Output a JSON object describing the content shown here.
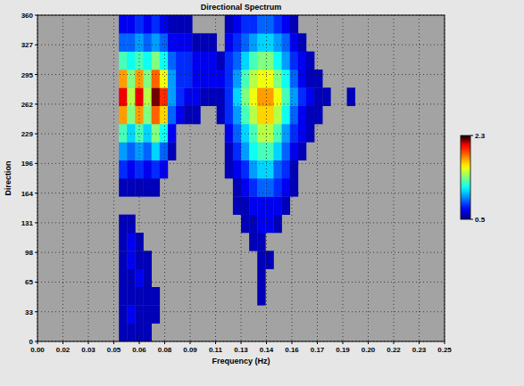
{
  "chart_data": {
    "type": "heatmap",
    "title": "Directional Spectrum",
    "x_label": "Frequency (Hz)",
    "y_label": "Direction",
    "x": [
      0.0525,
      0.0575,
      0.0625,
      0.0675,
      0.0725,
      0.0775,
      0.0825,
      0.0875,
      0.0925,
      0.0975,
      0.1025,
      0.1075,
      0.1125,
      0.1175,
      0.1225,
      0.1275,
      0.1325,
      0.1375,
      0.1425,
      0.1475,
      0.1525,
      0.1575,
      0.1625,
      0.1675,
      0.1725,
      0.1775,
      0.1825,
      0.1875,
      0.1925,
      0.1975
    ],
    "y": [
      10,
      30,
      50,
      70,
      90,
      110,
      130,
      150,
      170,
      190,
      210,
      230,
      250,
      270,
      290,
      310,
      330,
      350
    ],
    "values": [
      [
        0.6,
        0.6,
        0.6,
        0.6,
        null,
        null,
        null,
        null,
        null,
        null,
        null,
        null,
        null,
        null,
        null,
        null,
        null,
        null,
        null,
        null,
        null,
        null,
        null,
        null,
        null,
        null,
        null,
        null,
        null,
        null
      ],
      [
        0.6,
        0.7,
        0.6,
        0.6,
        0.6,
        null,
        null,
        null,
        null,
        null,
        null,
        null,
        null,
        null,
        null,
        null,
        null,
        null,
        null,
        null,
        null,
        null,
        null,
        null,
        null,
        null,
        null,
        null,
        null,
        null
      ],
      [
        0.6,
        0.6,
        0.6,
        0.6,
        0.6,
        null,
        null,
        null,
        null,
        null,
        null,
        null,
        null,
        null,
        null,
        null,
        null,
        0.6,
        null,
        null,
        null,
        null,
        null,
        null,
        null,
        null,
        null,
        null,
        null,
        null
      ],
      [
        0.6,
        0.6,
        0.7,
        0.6,
        null,
        null,
        null,
        null,
        null,
        null,
        null,
        null,
        null,
        null,
        null,
        null,
        null,
        0.6,
        null,
        null,
        null,
        null,
        null,
        null,
        null,
        null,
        null,
        null,
        null,
        null
      ],
      [
        0.6,
        0.7,
        0.6,
        0.6,
        null,
        null,
        null,
        null,
        null,
        null,
        null,
        null,
        null,
        null,
        null,
        null,
        null,
        0.6,
        0.6,
        null,
        null,
        null,
        null,
        null,
        null,
        null,
        null,
        null,
        null,
        null
      ],
      [
        0.6,
        0.7,
        0.6,
        null,
        null,
        null,
        null,
        null,
        null,
        null,
        null,
        null,
        null,
        null,
        null,
        null,
        0.6,
        0.6,
        null,
        null,
        null,
        null,
        null,
        null,
        null,
        null,
        null,
        null,
        null,
        null
      ],
      [
        0.6,
        0.6,
        null,
        null,
        null,
        null,
        null,
        null,
        null,
        null,
        null,
        null,
        null,
        null,
        null,
        0.6,
        0.6,
        0.7,
        0.7,
        0.6,
        null,
        null,
        null,
        null,
        null,
        null,
        null,
        null,
        null,
        null
      ],
      [
        null,
        null,
        null,
        null,
        null,
        null,
        null,
        null,
        null,
        null,
        null,
        null,
        null,
        null,
        0.6,
        0.6,
        0.7,
        0.7,
        0.7,
        0.7,
        0.6,
        null,
        null,
        null,
        null,
        null,
        null,
        null,
        null,
        null
      ],
      [
        0.6,
        0.6,
        0.6,
        0.6,
        0.6,
        null,
        null,
        null,
        null,
        null,
        null,
        null,
        null,
        null,
        0.6,
        0.7,
        0.8,
        0.9,
        0.9,
        0.8,
        0.7,
        0.6,
        null,
        null,
        null,
        null,
        null,
        null,
        null,
        null
      ],
      [
        0.8,
        0.7,
        0.8,
        0.7,
        0.8,
        0.7,
        null,
        null,
        null,
        null,
        null,
        null,
        null,
        0.6,
        0.7,
        0.8,
        1.0,
        1.1,
        1.1,
        0.9,
        0.8,
        0.6,
        null,
        null,
        null,
        null,
        null,
        null,
        null,
        null
      ],
      [
        1.0,
        0.9,
        1.0,
        0.9,
        1.1,
        0.9,
        0.6,
        null,
        null,
        null,
        null,
        null,
        null,
        0.6,
        0.8,
        1.0,
        1.2,
        1.3,
        1.3,
        1.1,
        0.9,
        0.7,
        0.6,
        null,
        null,
        null,
        null,
        null,
        null,
        null
      ],
      [
        1.3,
        1.1,
        1.3,
        1.1,
        1.4,
        1.2,
        0.7,
        null,
        null,
        null,
        null,
        null,
        null,
        0.7,
        0.9,
        1.1,
        1.3,
        1.5,
        1.5,
        1.3,
        1.0,
        0.8,
        0.7,
        0.6,
        null,
        null,
        null,
        null,
        null,
        null
      ],
      [
        1.8,
        1.4,
        1.8,
        1.4,
        1.9,
        1.7,
        0.9,
        0.7,
        0.6,
        0.6,
        null,
        null,
        0.6,
        0.8,
        1.0,
        1.3,
        1.5,
        1.7,
        1.7,
        1.5,
        1.2,
        0.9,
        0.7,
        0.6,
        0.6,
        null,
        null,
        null,
        null,
        null
      ],
      [
        2.1,
        1.5,
        2.1,
        1.5,
        2.2,
        2.0,
        1.0,
        0.8,
        0.7,
        0.7,
        0.6,
        0.6,
        0.6,
        0.8,
        1.1,
        1.4,
        1.6,
        1.8,
        1.8,
        1.6,
        1.3,
        1.0,
        0.8,
        0.7,
        0.6,
        0.6,
        null,
        null,
        0.6,
        null
      ],
      [
        1.8,
        1.4,
        1.8,
        1.4,
        1.9,
        1.6,
        1.0,
        0.8,
        0.8,
        0.7,
        0.7,
        0.7,
        0.7,
        0.8,
        1.0,
        1.3,
        1.5,
        1.6,
        1.6,
        1.4,
        1.2,
        0.9,
        0.7,
        0.6,
        0.6,
        null,
        null,
        null,
        null,
        null
      ],
      [
        1.3,
        1.2,
        1.3,
        1.2,
        1.4,
        1.2,
        0.9,
        0.8,
        0.8,
        0.7,
        0.7,
        0.7,
        0.6,
        0.8,
        0.9,
        1.1,
        1.3,
        1.4,
        1.4,
        1.2,
        1.0,
        0.8,
        0.7,
        0.6,
        null,
        null,
        null,
        null,
        null,
        null
      ],
      [
        0.9,
        0.9,
        1.0,
        0.9,
        1.0,
        0.9,
        0.7,
        0.7,
        0.7,
        0.6,
        0.6,
        0.6,
        null,
        0.7,
        0.8,
        0.9,
        1.0,
        1.1,
        1.1,
        1.0,
        0.9,
        0.7,
        0.6,
        null,
        null,
        null,
        null,
        null,
        null,
        null
      ],
      [
        0.7,
        0.7,
        0.8,
        0.7,
        0.8,
        0.7,
        0.6,
        0.6,
        0.6,
        null,
        null,
        null,
        null,
        0.6,
        0.7,
        0.8,
        0.8,
        0.9,
        0.9,
        0.8,
        0.7,
        0.6,
        null,
        null,
        null,
        null,
        null,
        null,
        null,
        null
      ]
    ],
    "xlim": [
      0,
      0.25
    ],
    "ylim": [
      0,
      360
    ],
    "xticks": [
      {
        "value": 0,
        "label": "0.00"
      },
      {
        "value": 0.015625,
        "label": "0.02"
      },
      {
        "value": 0.03125,
        "label": "0.03"
      },
      {
        "value": 0.046875,
        "label": "0.05"
      },
      {
        "value": 0.0625,
        "label": "0.06"
      },
      {
        "value": 0.078125,
        "label": "0.08"
      },
      {
        "value": 0.09375,
        "label": "0.09"
      },
      {
        "value": 0.109375,
        "label": "0.11"
      },
      {
        "value": 0.125,
        "label": "0.13"
      },
      {
        "value": 0.140625,
        "label": "0.14"
      },
      {
        "value": 0.15625,
        "label": "0.16"
      },
      {
        "value": 0.171875,
        "label": "0.17"
      },
      {
        "value": 0.1875,
        "label": "0.19"
      },
      {
        "value": 0.203125,
        "label": "0.20"
      },
      {
        "value": 0.21875,
        "label": "0.22"
      },
      {
        "value": 0.234375,
        "label": "0.23"
      },
      0.25
    ],
    "yticks": [
      0,
      {
        "value": 32.727,
        "label": "33"
      },
      {
        "value": 65.455,
        "label": "65"
      },
      {
        "value": 98.182,
        "label": "98"
      },
      {
        "value": 130.909,
        "label": "131"
      },
      {
        "value": 163.636,
        "label": "164"
      },
      {
        "value": 196.364,
        "label": "196"
      },
      {
        "value": 229.091,
        "label": "229"
      },
      {
        "value": 261.818,
        "label": "262"
      },
      {
        "value": 294.545,
        "label": "295"
      },
      {
        "value": 327.273,
        "label": "327"
      },
      360
    ],
    "colorbar_range": [
      0.5,
      2.3
    ],
    "colorbar_ticks": [
      0.5,
      2.3
    ],
    "grid": true
  }
}
